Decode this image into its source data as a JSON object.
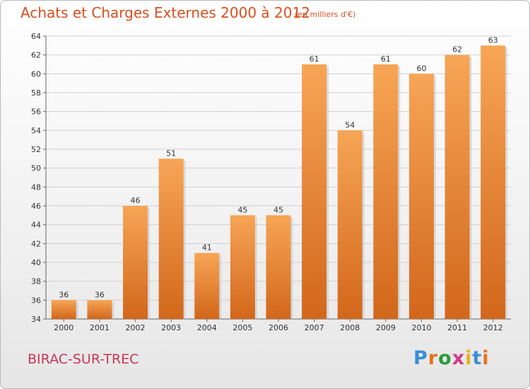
{
  "header": {
    "title": "Achats et Charges Externes 2000 à 2012",
    "unit_note": "(en milliers d'€)"
  },
  "footer": {
    "city": "BIRAC-SUR-TREC",
    "logo": "Proxiti"
  },
  "colors": {
    "bar_light": "#f7a556",
    "bar_dark": "#d2671b",
    "title": "#d94f1e",
    "city": "#c8365a",
    "grid": "#d0d0d0"
  },
  "chart_data": {
    "type": "bar",
    "title": "Achats et Charges Externes 2000 à 2012",
    "subtitle": "(en milliers d'€)",
    "xlabel": "",
    "ylabel": "",
    "categories": [
      "2000",
      "2001",
      "2002",
      "2003",
      "2004",
      "2005",
      "2006",
      "2007",
      "2008",
      "2009",
      "2010",
      "2011",
      "2012"
    ],
    "values": [
      36,
      36,
      46,
      51,
      41,
      45,
      45,
      61,
      54,
      61,
      60,
      62,
      63
    ],
    "ylim": [
      34,
      64
    ],
    "yticks": [
      34,
      36,
      38,
      40,
      42,
      44,
      46,
      48,
      50,
      52,
      54,
      56,
      58,
      60,
      62,
      64
    ],
    "grid": true,
    "legend": "none"
  }
}
